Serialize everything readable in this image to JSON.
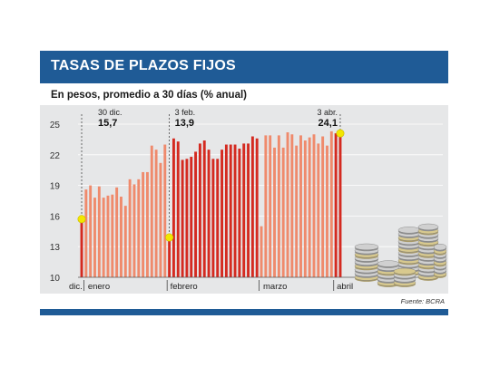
{
  "header": {
    "title": "TASAS DE PLAZOS FIJOS",
    "subtitle": "En pesos, promedio a 30 días (% anual)"
  },
  "footer": {
    "source": "Fuente: BCRA"
  },
  "colors": {
    "header_bg": "#1f5b96",
    "chart_bg": "#e6e7e8",
    "bar_light": "#ef8a6c",
    "bar_dark": "#d42a20",
    "marker": "#f2e600"
  },
  "chart_data": {
    "type": "bar",
    "title": "TASAS DE PLAZOS FIJOS",
    "subtitle": "En pesos, promedio a 30 días (% anual)",
    "ylim": [
      10,
      25
    ],
    "yticks": [
      10,
      13,
      16,
      19,
      22,
      25
    ],
    "grid": true,
    "months": [
      "dic.",
      "enero",
      "febrero",
      "marzo",
      "abril"
    ],
    "segments": [
      {
        "month": "dic.",
        "color": "#d42a20",
        "values": [
          15.7
        ]
      },
      {
        "month": "enero",
        "color": "#ef8a6c",
        "values": [
          18.6,
          19.0,
          17.8,
          18.9,
          17.8,
          18.0,
          18.1,
          18.8,
          17.9,
          17.0,
          19.6,
          19.1,
          19.6,
          20.3,
          20.3,
          22.9,
          22.5,
          21.2,
          23.0
        ]
      },
      {
        "month": "febrero",
        "color": "#d42a20",
        "values": [
          13.9,
          23.6,
          23.3,
          21.5,
          21.6,
          21.8,
          22.3,
          23.1,
          23.4,
          22.5,
          21.6,
          21.6,
          22.5,
          23.0,
          23.0,
          23.0,
          22.6,
          23.1,
          23.1,
          23.8,
          23.6
        ]
      },
      {
        "month": "marzo",
        "color": "#ef8a6c",
        "values": [
          15.0,
          23.9,
          23.9,
          22.7,
          23.9,
          22.7,
          24.2,
          24.0,
          22.9,
          23.9,
          23.4,
          23.7,
          24.0,
          23.1,
          23.8,
          22.9,
          24.3
        ]
      },
      {
        "month": "abril",
        "color": "#d42a20",
        "values": [
          24.1,
          24.1
        ]
      }
    ],
    "annotations": [
      {
        "date": "30 dic.",
        "value": "15,7"
      },
      {
        "date": "3 feb.",
        "value": "13,9"
      },
      {
        "date": "3 abr.",
        "value": "24,1"
      }
    ]
  }
}
